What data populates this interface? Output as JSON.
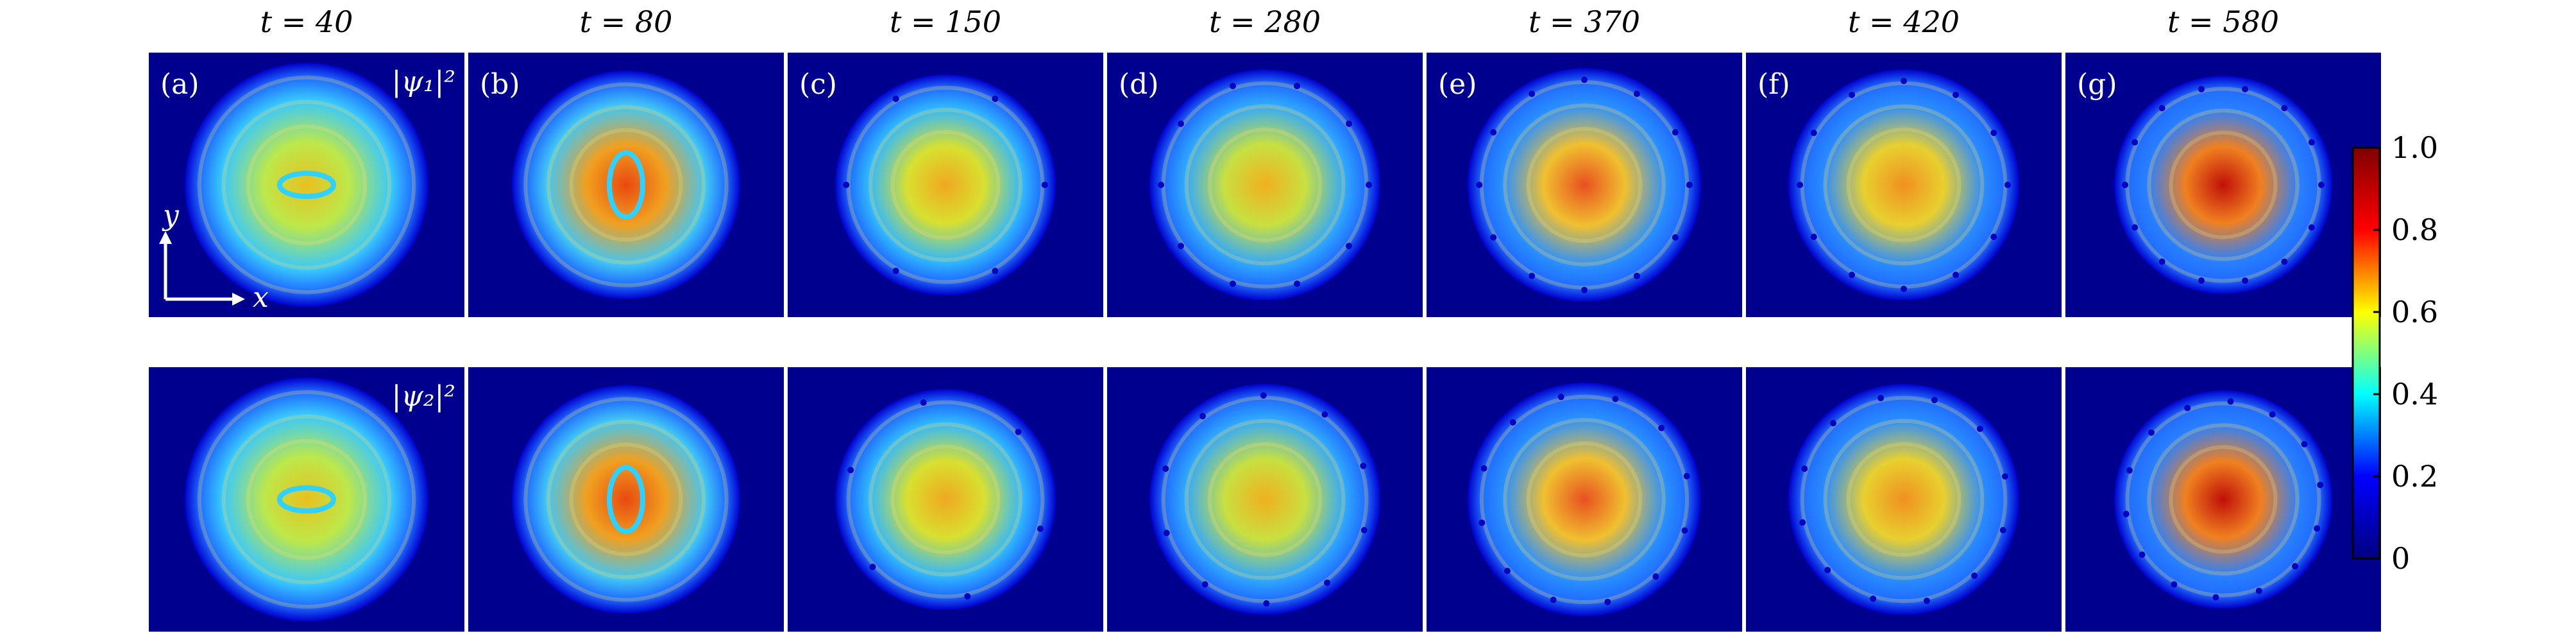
{
  "figure": {
    "columns": [
      {
        "time_label": "t = 40",
        "panel_label": "(a)"
      },
      {
        "time_label": "t = 80",
        "panel_label": "(b)"
      },
      {
        "time_label": "t = 150",
        "panel_label": "(c)"
      },
      {
        "time_label": "t = 280",
        "panel_label": "(d)"
      },
      {
        "time_label": "t = 370",
        "panel_label": "(e)"
      },
      {
        "time_label": "t = 420",
        "panel_label": "(f)"
      },
      {
        "time_label": "t = 580",
        "panel_label": "(g)"
      }
    ],
    "row_labels": [
      "|ψ₁|²",
      "|ψ₂|²"
    ],
    "axis_labels": {
      "x": "x",
      "y": "y"
    },
    "colorbar": {
      "ticks": [
        "1.0",
        "0.8",
        "0.6",
        "0.4",
        "0.2",
        "0"
      ],
      "colors": [
        "#00007f",
        "#0000ff",
        "#00ffff",
        "#ffff00",
        "#ff0000",
        "#7f0000"
      ]
    }
  }
}
